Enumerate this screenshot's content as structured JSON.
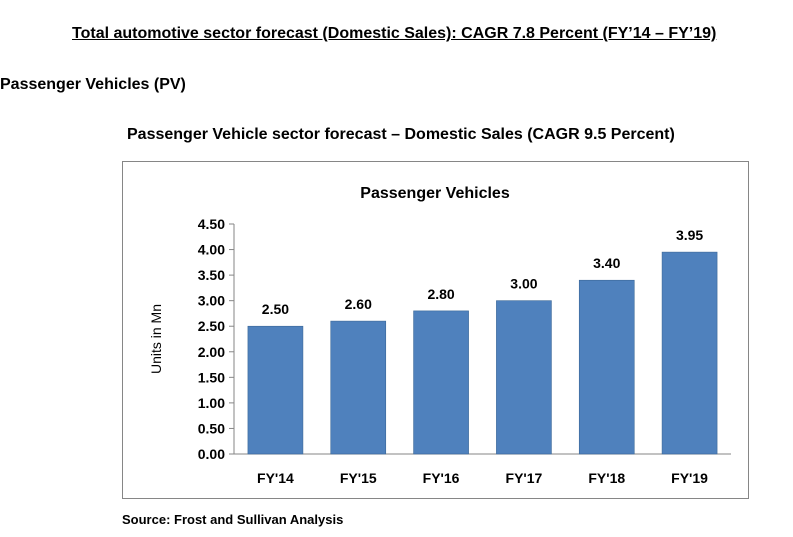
{
  "page": {
    "title": "Total automotive sector forecast (Domestic Sales): CAGR 7.8 Percent (FY’14 – FY’19)",
    "section_heading": "Passenger Vehicles (PV)",
    "chart_caption": "Passenger Vehicle sector forecast – Domestic Sales (CAGR 9.5 Percent)",
    "source": "Source: Frost and Sullivan Analysis"
  },
  "colors": {
    "bar_fill": "#4F81BD",
    "bar_edge": "#3A6797",
    "axis": "#868686"
  },
  "chart_data": {
    "type": "bar",
    "title": "Passenger Vehicles",
    "xlabel": "",
    "ylabel": "Units in Mn",
    "categories": [
      "FY'14",
      "FY'15",
      "FY'16",
      "FY'17",
      "FY'18",
      "FY'19"
    ],
    "values": [
      2.5,
      2.6,
      2.8,
      3.0,
      3.4,
      3.95
    ],
    "value_labels": [
      "2.50",
      "2.60",
      "2.80",
      "3.00",
      "3.40",
      "3.95"
    ],
    "ylim": [
      0,
      4.5
    ],
    "yticks": [
      "0.00",
      "0.50",
      "1.00",
      "1.50",
      "2.00",
      "2.50",
      "3.00",
      "3.50",
      "4.00",
      "4.50"
    ],
    "grid": false,
    "legend": "none"
  }
}
